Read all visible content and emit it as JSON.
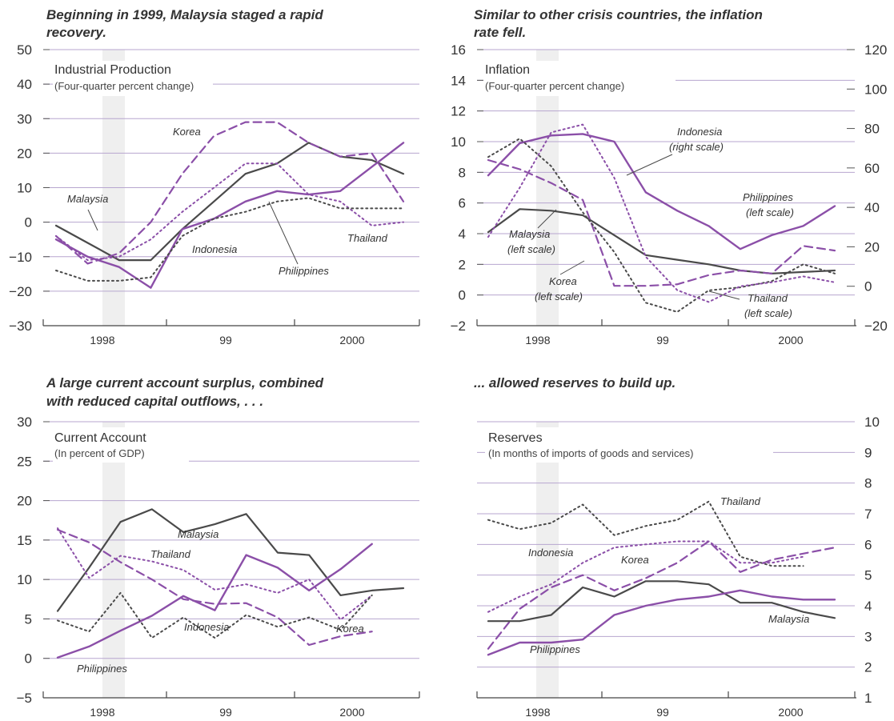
{
  "colors": {
    "purple": "#8b4fa8",
    "dark": "#4a4a4a",
    "grid": "#b7a6cf",
    "band": "#efefef"
  },
  "headlines": {
    "tl": [
      "Beginning in 1999, Malaysia staged a rapid",
      "recovery."
    ],
    "tr": [
      "Similar to other crisis countries, the inflation",
      "rate fell."
    ],
    "bl": [
      "A large current account surplus, combined",
      "with reduced capital outflows, . . ."
    ],
    "br": [
      "... allowed reserves to build up."
    ]
  },
  "chart_data": [
    {
      "id": "industrial",
      "type": "line",
      "title": "Industrial Production",
      "subtitle": "(Four-quarter percent change)",
      "xlabels": [
        "1998",
        "99",
        "2000"
      ],
      "ylim": [
        -30,
        50
      ],
      "yticks": [
        50,
        40,
        30,
        20,
        10,
        0,
        -10,
        -20,
        -30
      ],
      "ytick_labels": [
        "50",
        "40",
        "30",
        "20",
        "10",
        "0",
        "−10",
        "−20",
        "−30"
      ],
      "grid": true,
      "series": [
        {
          "name": "Malaysia",
          "style": "solid-dark",
          "values": [
            -1,
            -6,
            -11,
            -11,
            -2,
            6,
            14,
            17,
            23,
            19,
            18,
            14
          ]
        },
        {
          "name": "Korea",
          "style": "dash-purple",
          "values": [
            -4,
            -12,
            -9,
            0,
            14,
            25,
            29,
            29,
            23,
            19,
            20,
            6
          ]
        },
        {
          "name": "Indonesia",
          "style": "dot-purple",
          "values": [
            -4,
            -11,
            -10,
            -5,
            3,
            10,
            17,
            17,
            8,
            6,
            -1,
            0
          ]
        },
        {
          "name": "Philippines",
          "style": "solid-purple",
          "values": [
            -5,
            -10,
            -13,
            -19,
            -2,
            1,
            6,
            9,
            8,
            9,
            16,
            23
          ]
        },
        {
          "name": "Thailand",
          "style": "dot-dark",
          "values": [
            -14,
            -17,
            -17,
            -16,
            -4,
            1,
            3,
            6,
            7,
            4,
            4,
            4
          ]
        }
      ],
      "annotations": [
        "Malaysia",
        "Korea",
        "Indonesia",
        "Philippines",
        "Thailand"
      ]
    },
    {
      "id": "inflation",
      "type": "line",
      "title": "Inflation",
      "subtitle": "(Four-quarter percent change)",
      "xlabels": [
        "1998",
        "99",
        "2000"
      ],
      "ylim_left": [
        -2,
        16
      ],
      "ylim_right": [
        -20,
        120
      ],
      "yticks_left": [
        "16",
        "14",
        "12",
        "10",
        "8",
        "6",
        "4",
        "2",
        "0",
        "−2"
      ],
      "yticks_right": [
        "120",
        "100",
        "80",
        "60",
        "40",
        "20",
        "0",
        "−20"
      ],
      "grid": true,
      "series": [
        {
          "name": "Philippines (left scale)",
          "axis": "left",
          "style": "solid-purple",
          "values": [
            7.8,
            9.9,
            10.4,
            10.5,
            10.0,
            6.7,
            5.5,
            4.5,
            3.0,
            3.9,
            4.5,
            5.8
          ]
        },
        {
          "name": "Malaysia (left scale)",
          "axis": "left",
          "style": "solid-dark",
          "values": [
            4.1,
            5.6,
            5.5,
            5.2,
            3.9,
            2.6,
            2.3,
            2.0,
            1.6,
            1.4,
            1.5,
            1.6
          ]
        },
        {
          "name": "Korea (left scale)",
          "axis": "left",
          "style": "dash-purple",
          "values": [
            8.8,
            8.2,
            7.3,
            6.2,
            0.6,
            0.6,
            0.7,
            1.3,
            1.6,
            1.4,
            3.2,
            2.9
          ]
        },
        {
          "name": "Thailand (left scale)",
          "axis": "left",
          "style": "dot-dark",
          "values": [
            9.0,
            10.2,
            8.4,
            5.4,
            2.8,
            -0.5,
            -1.1,
            0.3,
            0.5,
            0.9,
            2.0,
            1.4
          ]
        },
        {
          "name": "Indonesia (right scale)",
          "axis": "right",
          "style": "dot-purple",
          "values": [
            25,
            50,
            78,
            82,
            55,
            15,
            -2,
            -8,
            0,
            2,
            5,
            2
          ]
        }
      ],
      "annotations": [
        "Indonesia",
        "(right scale)",
        "Philippines",
        "(left scale)",
        "Malaysia",
        "(left scale)",
        "Korea",
        "(left scale)",
        "Thailand",
        "(left scale)"
      ]
    },
    {
      "id": "current_account",
      "type": "line",
      "title": "Current Account",
      "subtitle": "(In percent of GDP)",
      "xlabels": [
        "1998",
        "99",
        "2000"
      ],
      "ylim": [
        -5,
        30
      ],
      "yticks": [
        30,
        25,
        20,
        15,
        10,
        5,
        0,
        -5
      ],
      "ytick_labels": [
        "30",
        "25",
        "20",
        "15",
        "10",
        "5",
        "0",
        "−5"
      ],
      "grid": true,
      "series": [
        {
          "name": "Malaysia",
          "style": "solid-dark",
          "values": [
            6.0,
            11.5,
            17.3,
            18.9,
            16.0,
            17.0,
            18.3,
            13.4,
            13.1,
            8.0,
            8.6,
            8.9
          ]
        },
        {
          "name": "Thailand",
          "style": "dot-purple",
          "values": [
            16.5,
            10.2,
            13.0,
            12.3,
            11.2,
            8.7,
            9.4,
            8.3,
            10.0,
            4.9,
            8.0,
            null
          ]
        },
        {
          "name": "Korea",
          "style": "dash-purple",
          "values": [
            16.3,
            14.7,
            12.2,
            10.0,
            7.5,
            6.9,
            7.0,
            5.2,
            1.7,
            2.8,
            3.4,
            null
          ]
        },
        {
          "name": "Philippines",
          "style": "solid-purple",
          "values": [
            0.1,
            1.5,
            3.5,
            5.4,
            7.9,
            6.1,
            13.1,
            11.5,
            8.6,
            11.3,
            14.5,
            null
          ]
        },
        {
          "name": "Indonesia",
          "style": "dot-dark",
          "values": [
            4.8,
            3.4,
            8.3,
            2.6,
            5.2,
            2.6,
            5.5,
            4.0,
            5.2,
            3.6,
            8.0,
            null
          ]
        }
      ],
      "annotations": [
        "Malaysia",
        "Thailand",
        "Indonesia",
        "Korea",
        "Philippines"
      ]
    },
    {
      "id": "reserves",
      "type": "line",
      "title": "Reserves",
      "subtitle": "(In months of imports of goods and services)",
      "xlabels": [
        "1998",
        "99",
        "2000"
      ],
      "ylim": [
        1,
        10
      ],
      "yticks": [
        10,
        9,
        8,
        7,
        6,
        5,
        4,
        3,
        2,
        1
      ],
      "ytick_labels": [
        "10",
        "9",
        "8",
        "7",
        "6",
        "5",
        "4",
        "3",
        "2",
        "1"
      ],
      "y_axis_side": "right",
      "grid": true,
      "series": [
        {
          "name": "Thailand",
          "style": "dot-dark",
          "values": [
            6.8,
            6.5,
            6.7,
            7.3,
            6.3,
            6.6,
            6.8,
            7.4,
            5.6,
            5.3,
            5.3,
            null
          ]
        },
        {
          "name": "Indonesia",
          "style": "dot-purple",
          "values": [
            3.8,
            4.3,
            4.7,
            5.4,
            5.9,
            6.0,
            6.1,
            6.1,
            5.4,
            5.4,
            5.6,
            null
          ]
        },
        {
          "name": "Korea",
          "style": "dash-purple",
          "values": [
            2.6,
            3.9,
            4.6,
            5.0,
            4.5,
            4.9,
            5.4,
            6.1,
            5.1,
            5.5,
            5.7,
            5.9
          ]
        },
        {
          "name": "Malaysia",
          "style": "solid-dark",
          "values": [
            3.5,
            3.5,
            3.7,
            4.6,
            4.3,
            4.8,
            4.8,
            4.7,
            4.1,
            4.1,
            3.8,
            3.6
          ]
        },
        {
          "name": "Philippines",
          "style": "solid-purple",
          "values": [
            2.4,
            2.8,
            2.8,
            2.9,
            3.7,
            4.0,
            4.2,
            4.3,
            4.5,
            4.3,
            4.2,
            4.2
          ]
        }
      ],
      "annotations": [
        "Thailand",
        "Indonesia",
        "Korea",
        "Malaysia",
        "Philippines"
      ]
    }
  ]
}
